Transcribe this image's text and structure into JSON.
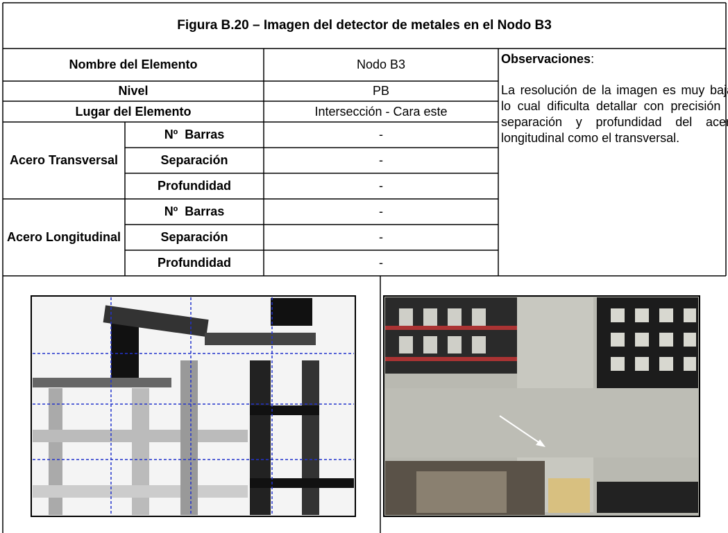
{
  "title": "Figura B.20 – Imagen del detector de metales en el Nodo B3",
  "table": {
    "rows": [
      [
        "Nombre del Elemento",
        "Nodo B3"
      ],
      [
        "Nivel",
        "PB"
      ],
      [
        "Lugar del Elemento",
        "Intersección - Cara este"
      ]
    ],
    "groups": [
      {
        "label": "Acero Transversal",
        "rows": [
          [
            "Nº  Barras",
            "-"
          ],
          [
            "Separación",
            "-"
          ],
          [
            "Profundidad",
            "-"
          ]
        ]
      },
      {
        "label": "Acero Longitudinal",
        "rows": [
          [
            "Nº  Barras",
            "-"
          ],
          [
            "Separación",
            "-"
          ],
          [
            "Profundidad",
            "-"
          ]
        ]
      }
    ]
  },
  "observations": {
    "label": "Observaciones",
    "colon": ":",
    "text": "La resolución de la imagen es muy baja, lo cual dificulta detallar con precisión la separación y profundidad del acero longitudinal como el transversal."
  }
}
